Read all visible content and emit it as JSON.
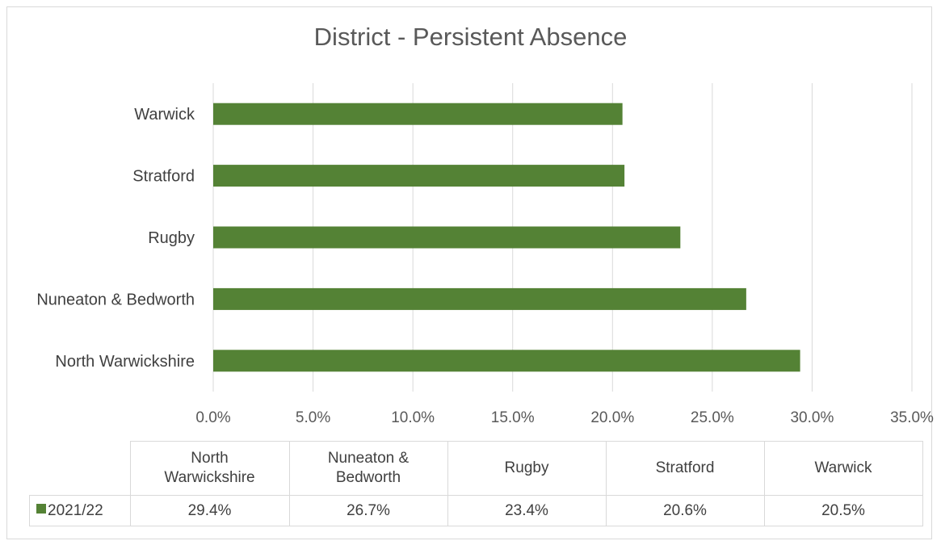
{
  "chart_data": {
    "type": "bar",
    "orientation": "horizontal",
    "title": "District - Persistent Absence",
    "categories": [
      "North Warwickshire",
      "Nuneaton & Bedworth",
      "Rugby",
      "Stratford",
      "Warwick"
    ],
    "series": [
      {
        "name": "2021/22",
        "values": [
          29.4,
          26.7,
          23.4,
          20.6,
          20.5
        ],
        "color": "#548235"
      }
    ],
    "xlim": [
      0,
      35
    ],
    "x_ticks": [
      "0.0%",
      "5.0%",
      "10.0%",
      "15.0%",
      "20.0%",
      "25.0%",
      "30.0%",
      "35.0%"
    ],
    "grid": true,
    "legend": "data-table"
  },
  "table": {
    "headers": [
      [
        "North",
        "Warwickshire"
      ],
      [
        "Nuneaton &",
        "Bedworth"
      ],
      [
        "Rugby"
      ],
      [
        "Stratford"
      ],
      [
        "Warwick"
      ]
    ],
    "row_label": "2021/22",
    "values": [
      "29.4%",
      "26.7%",
      "23.4%",
      "20.6%",
      "20.5%"
    ]
  },
  "colors": {
    "bar": "#548235",
    "grid": "#d9d9d9"
  }
}
